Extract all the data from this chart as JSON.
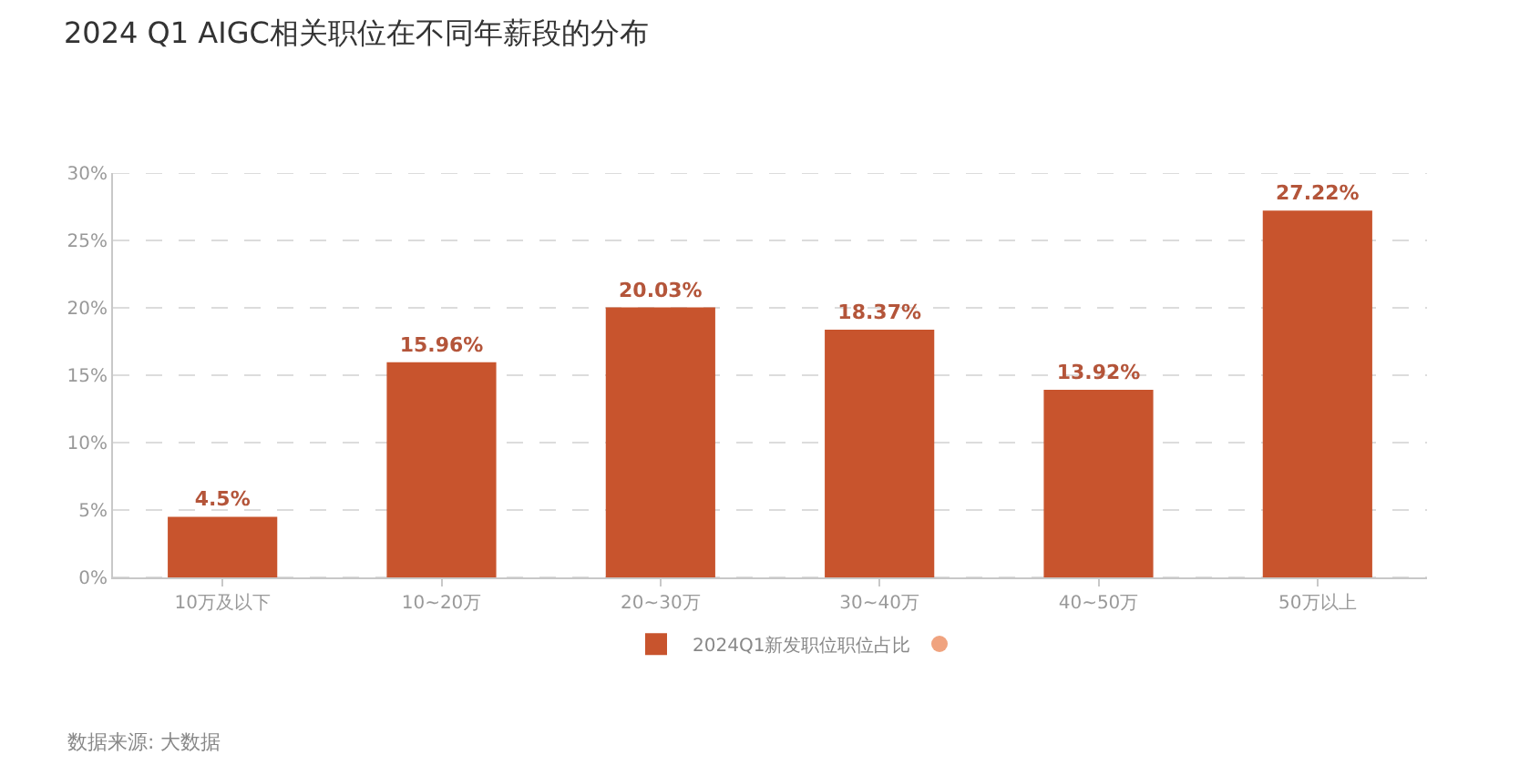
{
  "chart_data": {
    "type": "bar",
    "title": "2024 Q1 AIGC相关职位在不同年薪段的分布",
    "categories": [
      "10万及以下",
      "10~20万",
      "20~30万",
      "30~40万",
      "40~50万",
      "50万以上"
    ],
    "series": [
      {
        "name": "2024Q1新发职位职位占比",
        "color": "#c8542d",
        "values": [
          4.5,
          15.96,
          20.03,
          18.37,
          13.92,
          27.22
        ],
        "value_labels": [
          "4.5%",
          "15.96%",
          "20.03%",
          "18.37%",
          "13.92%",
          "27.22%"
        ]
      }
    ],
    "ylim": [
      0,
      30
    ],
    "yticks": [
      {
        "value": 0,
        "label": "0%"
      },
      {
        "value": 5,
        "label": "5%"
      },
      {
        "value": 10,
        "label": "10%"
      },
      {
        "value": 15,
        "label": "15%"
      },
      {
        "value": 20,
        "label": "20%"
      },
      {
        "value": 25,
        "label": "25%"
      },
      {
        "value": 30,
        "label": "30%"
      }
    ],
    "grid": "y",
    "legend": "bottom",
    "annotations": [
      "数据来源: 大数据"
    ]
  }
}
